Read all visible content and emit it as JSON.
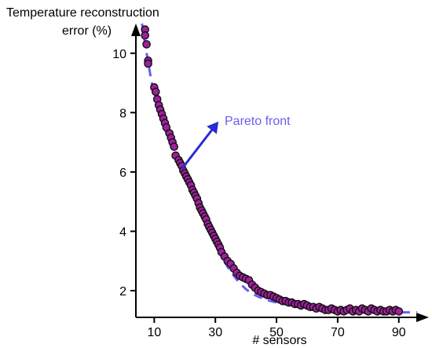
{
  "chart_data": {
    "type": "scatter",
    "ylabel_lines": [
      "Temperature reconstruction",
      "error (%)"
    ],
    "xlabel": "# sensors",
    "x_ticks": [
      10,
      30,
      50,
      70,
      90
    ],
    "y_ticks": [
      2,
      4,
      6,
      8,
      10
    ],
    "xlim": [
      4,
      97
    ],
    "ylim": [
      1.1,
      11
    ],
    "grid": false,
    "colors": {
      "marker_fill": "#a11f9e",
      "marker_edge": "#111111",
      "trend": "#6a5cf5",
      "annotation": "#2a2ad6",
      "annotation_text": "#6a5cf5"
    },
    "annotation": {
      "text": "Pareto front",
      "from": [
        19,
        6.1
      ],
      "to": [
        31,
        7.7
      ]
    },
    "trend_line": {
      "x": [
        6,
        7,
        8,
        9,
        10,
        12,
        14,
        16,
        18,
        20,
        22,
        24,
        26,
        28,
        30,
        32,
        34,
        36,
        38,
        40,
        42,
        44,
        46,
        48,
        50,
        52,
        54,
        56,
        58,
        60,
        64,
        68,
        72,
        76,
        80,
        84,
        88,
        92,
        96
      ],
      "y": [
        11.0,
        10.3,
        9.7,
        9.1,
        8.6,
        7.9,
        7.3,
        6.75,
        6.25,
        5.8,
        5.35,
        4.9,
        4.45,
        4.0,
        3.55,
        3.15,
        2.8,
        2.5,
        2.25,
        2.05,
        1.9,
        1.8,
        1.72,
        1.65,
        1.6,
        1.56,
        1.52,
        1.49,
        1.46,
        1.44,
        1.4,
        1.37,
        1.35,
        1.33,
        1.31,
        1.29,
        1.28,
        1.27,
        1.27
      ]
    },
    "series": [
      {
        "x": [
          7,
          7,
          7.5,
          8,
          8,
          10,
          10.5,
          11,
          11.5,
          12,
          12.5,
          13,
          13.5,
          14,
          15,
          15.5,
          16,
          16.5,
          17,
          18,
          18.5,
          19,
          19.5,
          20,
          20.5,
          21,
          21.5,
          22,
          22.5,
          23,
          23.5,
          24,
          24.5,
          25,
          25.5,
          26,
          26.5,
          27,
          27.5,
          28,
          28.5,
          29,
          29.5,
          30,
          30.5,
          31,
          31.5,
          32,
          33,
          34,
          35,
          36,
          37,
          38,
          39,
          40,
          41,
          42,
          43,
          44,
          45,
          46,
          47,
          48,
          49,
          50,
          51,
          52,
          53,
          54,
          55,
          56,
          57,
          58,
          59,
          60,
          61,
          62,
          63,
          64,
          65,
          66,
          67,
          68,
          69,
          70,
          71,
          72,
          73,
          74,
          75,
          76,
          77,
          78,
          79,
          80,
          81,
          82,
          83,
          84,
          85,
          86,
          87,
          88,
          89,
          90
        ],
        "y": [
          10.8,
          10.6,
          10.3,
          9.75,
          9.65,
          8.85,
          8.7,
          8.45,
          8.25,
          8.1,
          7.95,
          7.8,
          7.65,
          7.5,
          7.3,
          7.15,
          7.0,
          6.85,
          6.55,
          6.4,
          6.3,
          6.2,
          6.05,
          5.95,
          5.85,
          5.75,
          5.65,
          5.55,
          5.4,
          5.3,
          5.2,
          5.1,
          4.95,
          4.8,
          4.7,
          4.6,
          4.5,
          4.4,
          4.25,
          4.15,
          4.05,
          3.95,
          3.85,
          3.75,
          3.65,
          3.55,
          3.45,
          3.3,
          3.15,
          3.0,
          2.9,
          2.75,
          2.6,
          2.5,
          2.45,
          2.4,
          2.35,
          2.2,
          2.1,
          2.0,
          1.95,
          1.9,
          1.85,
          1.85,
          1.8,
          1.75,
          1.7,
          1.65,
          1.65,
          1.6,
          1.6,
          1.55,
          1.55,
          1.5,
          1.55,
          1.5,
          1.45,
          1.45,
          1.4,
          1.45,
          1.4,
          1.35,
          1.35,
          1.4,
          1.35,
          1.3,
          1.35,
          1.3,
          1.35,
          1.4,
          1.3,
          1.35,
          1.3,
          1.4,
          1.35,
          1.3,
          1.4,
          1.35,
          1.3,
          1.35,
          1.3,
          1.3,
          1.35,
          1.3,
          1.35,
          1.3
        ]
      }
    ]
  }
}
